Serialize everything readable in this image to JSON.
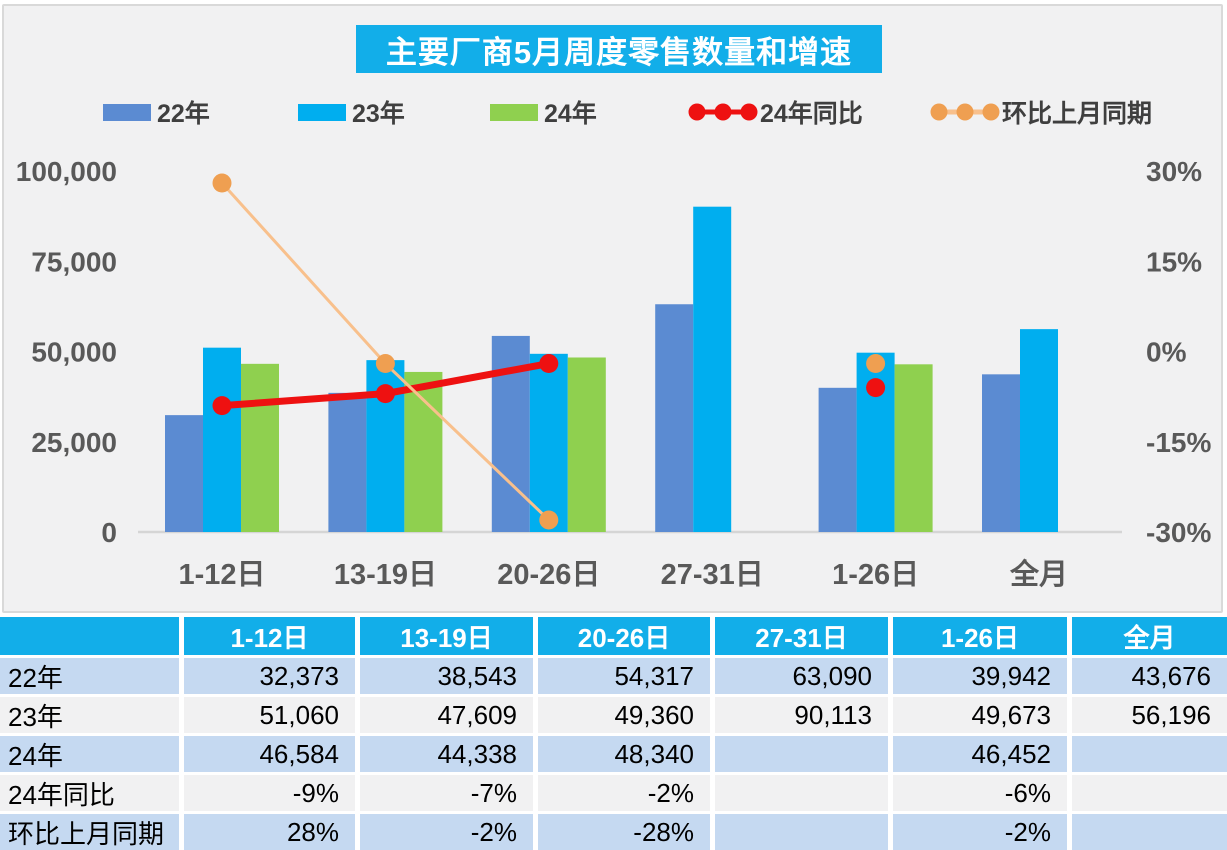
{
  "title": {
    "text": "主要厂商5月周度零售数量和增速"
  },
  "legend": [
    {
      "label": "22年",
      "type": "swatch",
      "color": "#5B8BD2"
    },
    {
      "label": "23年",
      "type": "swatch",
      "color": "#00AEEF"
    },
    {
      "label": "24年",
      "type": "swatch",
      "color": "#8FD04F"
    },
    {
      "label": "24年同比",
      "type": "line",
      "color": "#EE1111",
      "line_color": "#EE1111"
    },
    {
      "label": "环比上月同期",
      "type": "line",
      "color": "#EF9F51",
      "line_color": "#F8C08C"
    }
  ],
  "chart_data": {
    "type": "bar+line combo",
    "title": "主要厂商5月周度零售数量和增速",
    "categories": [
      "1-12日",
      "13-19日",
      "20-26日",
      "27-31日",
      "1-26日",
      "全月"
    ],
    "series": [
      {
        "name": "22年",
        "type": "bar",
        "axis": "left",
        "color": "#5B8BD2",
        "values": [
          32373,
          38543,
          54317,
          63090,
          39942,
          43676
        ]
      },
      {
        "name": "23年",
        "type": "bar",
        "axis": "left",
        "color": "#00AEEF",
        "values": [
          51060,
          47609,
          49360,
          90113,
          49673,
          56196
        ]
      },
      {
        "name": "24年",
        "type": "bar",
        "axis": "left",
        "color": "#8FD04F",
        "values": [
          46584,
          44338,
          48340,
          null,
          46452,
          null
        ]
      },
      {
        "name": "24年同比",
        "type": "line",
        "axis": "right",
        "color": "#EE1111",
        "marker_color": "#EE1111",
        "line_width": 7,
        "values": [
          -9,
          -7,
          -2,
          null,
          -6,
          null
        ]
      },
      {
        "name": "环比上月同期",
        "type": "line",
        "axis": "right",
        "color": "#F8C08C",
        "marker_color": "#EF9F51",
        "line_width": 3,
        "values": [
          28,
          -2,
          -28,
          null,
          -2,
          null
        ]
      }
    ],
    "left_axis": {
      "min": 0,
      "max": 100000,
      "ticks": [
        {
          "v": 0,
          "label": "0"
        },
        {
          "v": 25000,
          "label": "25,000"
        },
        {
          "v": 50000,
          "label": "50,000"
        },
        {
          "v": 75000,
          "label": "75,000"
        },
        {
          "v": 100000,
          "label": "100,000"
        }
      ]
    },
    "right_axis": {
      "min": -30,
      "max": 30,
      "ticks": [
        {
          "v": -30,
          "label": "-30%"
        },
        {
          "v": -15,
          "label": "-15%"
        },
        {
          "v": 0,
          "label": "0%"
        },
        {
          "v": 15,
          "label": "15%"
        },
        {
          "v": 30,
          "label": "30%"
        }
      ]
    },
    "grid": false,
    "legend_position": "top"
  },
  "table": {
    "columns": [
      "",
      "1-12日",
      "13-19日",
      "20-26日",
      "27-31日",
      "1-26日",
      "全月"
    ],
    "rows": [
      {
        "label": "22年",
        "cells": [
          "32,373",
          "38,543",
          "54,317",
          "63,090",
          "39,942",
          "43,676"
        ]
      },
      {
        "label": "23年",
        "cells": [
          "51,060",
          "47,609",
          "49,360",
          "90,113",
          "49,673",
          "56,196"
        ]
      },
      {
        "label": "24年",
        "cells": [
          "46,584",
          "44,338",
          "48,340",
          "",
          "46,452",
          ""
        ]
      },
      {
        "label": "24年同比",
        "cells": [
          "-9%",
          "-7%",
          "-2%",
          "",
          "-6%",
          ""
        ]
      },
      {
        "label": "环比上月同期",
        "cells": [
          "28%",
          "-2%",
          "-28%",
          "",
          "-2%",
          ""
        ]
      }
    ]
  },
  "colors": {
    "accent_cyan": "#12AEE9",
    "panel_bg": "#F1F1F2",
    "panel_border": "#D9D9D9",
    "axis_text": "#595959",
    "axis_line": "#D5D5D5",
    "row_stripe_blue": "#C5D9F1",
    "row_stripe_gray": "#F1F1F2",
    "table_text": "#000000"
  }
}
